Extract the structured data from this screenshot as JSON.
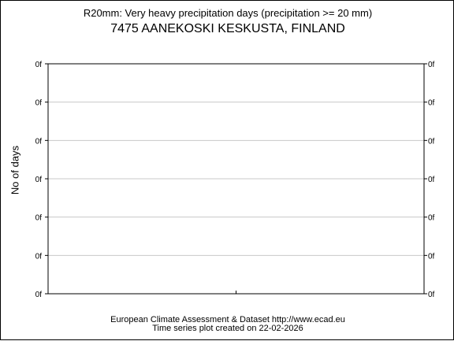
{
  "chart_data": {
    "type": "line",
    "title": "R20mm: Very heavy precipitation days (precipitation >= 20 mm)",
    "subtitle": "7475 AANEKOSKI KESKUSTA, FINLAND",
    "xlabel": "",
    "ylabel": "No of days",
    "y_tick_labels": [
      "0f",
      "0f",
      "0f",
      "0f",
      "0f",
      "0f",
      "0f"
    ],
    "series": [],
    "grid": true,
    "legend": "none"
  },
  "footer": {
    "line1": "European Climate Assessment & Dataset  http://www.ecad.eu",
    "line2": "Time series plot created on 22-02-2026"
  },
  "colors": {
    "axis": "#000000",
    "grid": "#c8c8c8",
    "background": "#ffffff"
  }
}
